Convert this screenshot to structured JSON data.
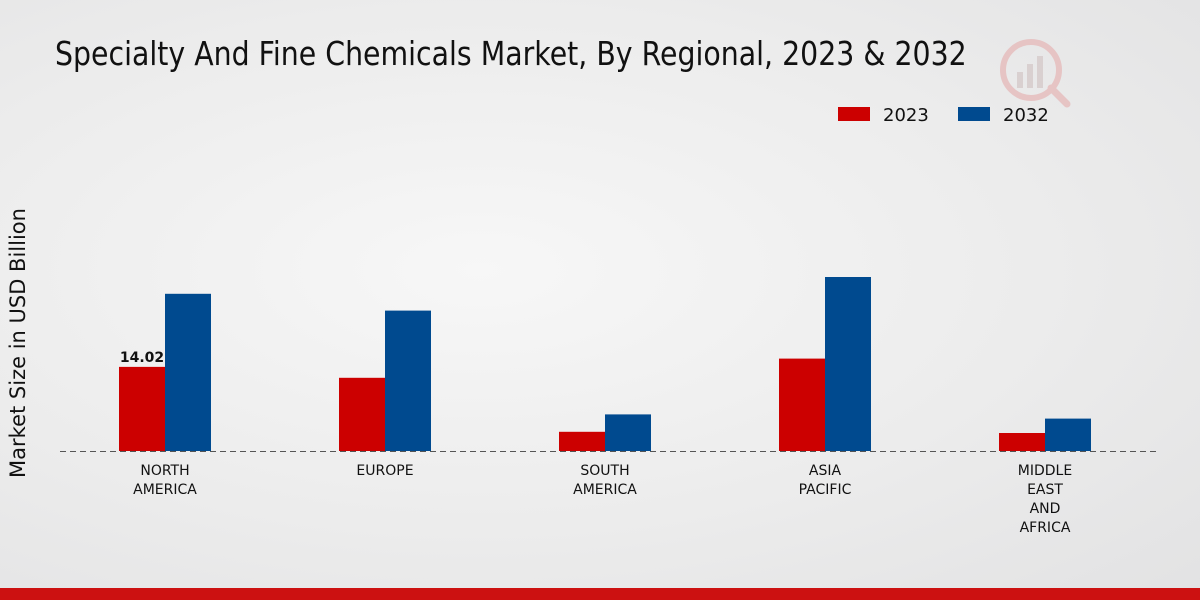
{
  "chart_data": {
    "type": "bar",
    "title": "Specialty And Fine Chemicals Market, By Regional, 2023 & 2032",
    "xlabel": "",
    "ylabel": "Market Size in USD Billion",
    "categories": [
      [
        "NORTH",
        "AMERICA"
      ],
      [
        "EUROPE"
      ],
      [
        "SOUTH",
        "AMERICA"
      ],
      [
        "ASIA",
        "PACIFIC"
      ],
      [
        "MIDDLE",
        "EAST",
        "AND",
        "AFRICA"
      ]
    ],
    "series": [
      {
        "name": "2023",
        "color": "#cc0000",
        "values": [
          14.02,
          12.2,
          3.2,
          15.4,
          3.0
        ]
      },
      {
        "name": "2032",
        "color": "#004a8f",
        "values": [
          26.2,
          23.4,
          6.1,
          29.0,
          5.4
        ]
      }
    ],
    "data_labels": [
      {
        "series": 0,
        "index": 0,
        "text": "14.02"
      }
    ],
    "ylim": [
      0,
      35
    ],
    "grid": false,
    "legend_position": "top-right"
  }
}
